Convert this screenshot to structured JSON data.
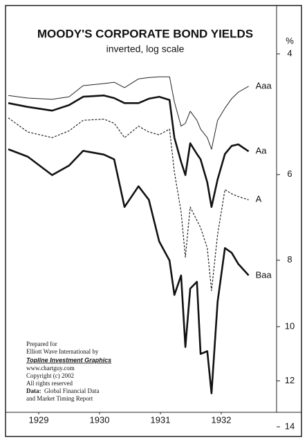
{
  "chart_data": {
    "type": "line",
    "title": "MOODY'S CORPORATE BOND YIELDS",
    "subtitle": "inverted, log scale",
    "y_unit_label": "%",
    "log_scale": true,
    "inverted": true,
    "x": [
      1929.0,
      1929.32,
      1929.72,
      1930.0,
      1930.23,
      1930.57,
      1930.74,
      1930.91,
      1931.14,
      1931.31,
      1931.48,
      1931.65,
      1931.73,
      1931.84,
      1931.91,
      1931.99,
      1932.1,
      1932.16,
      1932.27,
      1932.34,
      1932.44,
      1932.56,
      1932.67,
      1932.78,
      1932.95
    ],
    "xlim": [
      1929,
      1933
    ],
    "xticks": [
      {
        "value": 1929.5,
        "label": "1929"
      },
      {
        "value": 1930.5,
        "label": "1930"
      },
      {
        "value": 1931.5,
        "label": "1931"
      },
      {
        "value": 1932.5,
        "label": "1932"
      }
    ],
    "ylim": [
      4,
      14
    ],
    "yticks": [
      4,
      6,
      8,
      10,
      12,
      14
    ],
    "series": [
      {
        "name": "Aaa",
        "color": "#222222",
        "line_width": 1,
        "dashed": false,
        "values": [
          4.6,
          4.64,
          4.66,
          4.62,
          4.45,
          4.42,
          4.4,
          4.48,
          4.35,
          4.33,
          4.32,
          4.32,
          4.7,
          5.1,
          5.05,
          4.85,
          5.0,
          5.15,
          5.3,
          5.51,
          5.0,
          4.8,
          4.65,
          4.55,
          4.46
        ]
      },
      {
        "name": "Aa",
        "color": "#111111",
        "line_width": 2.6,
        "dashed": false,
        "values": [
          4.72,
          4.78,
          4.84,
          4.75,
          4.62,
          4.6,
          4.64,
          4.72,
          4.72,
          4.65,
          4.62,
          4.67,
          5.3,
          5.75,
          6.01,
          5.4,
          5.6,
          5.7,
          6.16,
          6.69,
          6.1,
          5.6,
          5.45,
          5.42,
          5.55
        ]
      },
      {
        "name": "A",
        "color": "#222222",
        "line_width": 1.2,
        "dashed": true,
        "values": [
          4.96,
          5.2,
          5.3,
          5.18,
          5.0,
          4.98,
          5.05,
          5.3,
          5.1,
          5.2,
          5.25,
          5.15,
          5.95,
          6.8,
          7.92,
          6.69,
          7.0,
          7.17,
          7.68,
          8.86,
          7.34,
          6.31,
          6.4,
          6.46,
          6.53
        ]
      },
      {
        "name": "Baa",
        "color": "#111111",
        "line_width": 2.6,
        "dashed": false,
        "values": [
          5.51,
          5.65,
          6.01,
          5.82,
          5.54,
          5.61,
          5.7,
          6.69,
          6.24,
          6.53,
          7.51,
          8.01,
          8.99,
          8.42,
          10.71,
          8.8,
          8.6,
          10.96,
          10.86,
          12.51,
          9.2,
          7.68,
          7.8,
          8.1,
          8.42
        ]
      }
    ],
    "notes": [
      "Prepared for",
      "Elliott Wave International by",
      "Topline Investment Graphics",
      "www.chartguy.com",
      "Copyright (c) 2002",
      "All rights reserved"
    ],
    "data_label": "Data:",
    "data_source": [
      "Global Financial Data",
      "and Market Timing Report"
    ]
  }
}
